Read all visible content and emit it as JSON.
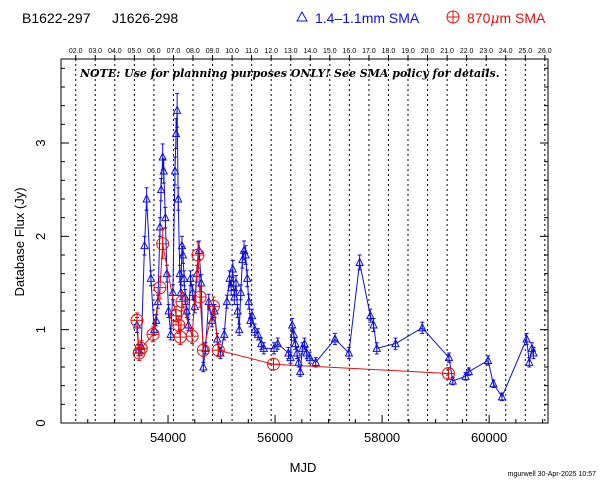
{
  "header": {
    "source_left": "B1622-297",
    "source_right": "J1626-298",
    "legend_blue_label": "1.4–1.1mm SMA",
    "legend_red_label_pre": "870",
    "legend_red_label_mu": "μ",
    "legend_red_label_post": "m SMA"
  },
  "note": "NOTE: Use for planning purposes ONLY!  See SMA policy for details.",
  "credit": "mgurwell 30-Apr-2025 10:57",
  "colors": {
    "blue": "#1010d8",
    "red": "#e01010",
    "axis": "#000000"
  },
  "chart_data": {
    "type": "scatter",
    "xlabel": "MJD",
    "ylabel": "Database Flux (Jy)",
    "xlim": [
      52000,
      61100
    ],
    "ylim": [
      0,
      3.9
    ],
    "x_ticks": [
      54000,
      56000,
      58000,
      60000
    ],
    "x_tick_labels": [
      "54000",
      "56000",
      "58000",
      "60000"
    ],
    "y_ticks": [
      0,
      1,
      2,
      3
    ],
    "y_tick_labels": [
      "0",
      "1",
      "2",
      "3"
    ],
    "year_marks": [
      {
        "label": "02.0",
        "mjd": 52275
      },
      {
        "label": "03.0",
        "mjd": 52640
      },
      {
        "label": "04.0",
        "mjd": 53005
      },
      {
        "label": "05.0",
        "mjd": 53371
      },
      {
        "label": "06.0",
        "mjd": 53736
      },
      {
        "label": "07.0",
        "mjd": 54101
      },
      {
        "label": "08.0",
        "mjd": 54466
      },
      {
        "label": "09.0",
        "mjd": 54832
      },
      {
        "label": "10.0",
        "mjd": 55197
      },
      {
        "label": "11.0",
        "mjd": 55562
      },
      {
        "label": "12.0",
        "mjd": 55927
      },
      {
        "label": "13.0",
        "mjd": 56293
      },
      {
        "label": "14.0",
        "mjd": 56658
      },
      {
        "label": "15.0",
        "mjd": 57023
      },
      {
        "label": "16.0",
        "mjd": 57388
      },
      {
        "label": "17.0",
        "mjd": 57754
      },
      {
        "label": "18.0",
        "mjd": 58119
      },
      {
        "label": "19.0",
        "mjd": 58484
      },
      {
        "label": "20.0",
        "mjd": 58849
      },
      {
        "label": "21.0",
        "mjd": 59215
      },
      {
        "label": "22.0",
        "mjd": 59580
      },
      {
        "label": "23.0",
        "mjd": 59945
      },
      {
        "label": "24.0",
        "mjd": 60310
      },
      {
        "label": "25.0",
        "mjd": 60676
      },
      {
        "label": "26.0",
        "mjd": 61041
      }
    ],
    "series": [
      {
        "name": "1.4–1.1mm SMA",
        "marker": "triangle",
        "color": "#1010d8",
        "points": [
          [
            53420,
            1.05,
            0.08
          ],
          [
            53450,
            0.78,
            0.06
          ],
          [
            53500,
            0.82,
            0.06
          ],
          [
            53560,
            1.9,
            0.1
          ],
          [
            53600,
            2.4,
            0.12
          ],
          [
            53680,
            1.55,
            0.08
          ],
          [
            53740,
            1.0,
            0.06
          ],
          [
            53780,
            1.1,
            0.06
          ],
          [
            53810,
            1.3,
            0.07
          ],
          [
            53850,
            2.1,
            0.1
          ],
          [
            53870,
            2.5,
            0.12
          ],
          [
            53900,
            2.85,
            0.14
          ],
          [
            53920,
            2.7,
            0.13
          ],
          [
            53950,
            2.2,
            0.11
          ],
          [
            53980,
            1.6,
            0.09
          ],
          [
            54010,
            1.2,
            0.07
          ],
          [
            54050,
            0.95,
            0.06
          ],
          [
            54090,
            1.4,
            0.08
          ],
          [
            54130,
            2.7,
            0.15
          ],
          [
            54150,
            3.1,
            0.16
          ],
          [
            54170,
            3.35,
            0.18
          ],
          [
            54190,
            2.4,
            0.12
          ],
          [
            54220,
            1.6,
            0.09
          ],
          [
            54240,
            1.4,
            0.08
          ],
          [
            54260,
            1.9,
            0.1
          ],
          [
            54280,
            1.8,
            0.09
          ],
          [
            54300,
            1.55,
            0.08
          ],
          [
            54320,
            1.35,
            0.08
          ],
          [
            54350,
            1.2,
            0.07
          ],
          [
            54380,
            1.05,
            0.06
          ],
          [
            54420,
            1.55,
            0.08
          ],
          [
            54460,
            1.4,
            0.08
          ],
          [
            54500,
            1.25,
            0.07
          ],
          [
            54540,
            1.6,
            0.09
          ],
          [
            54580,
            1.85,
            0.1
          ],
          [
            54620,
            1.5,
            0.09
          ],
          [
            54660,
            0.6,
            0.05
          ],
          [
            54700,
            0.8,
            0.06
          ],
          [
            54760,
            1.3,
            0.08
          ],
          [
            54820,
            1.1,
            0.07
          ],
          [
            54870,
            1.2,
            0.07
          ],
          [
            54920,
            0.9,
            0.06
          ],
          [
            54980,
            0.75,
            0.06
          ],
          [
            55050,
            0.95,
            0.06
          ],
          [
            55100,
            1.3,
            0.07
          ],
          [
            55150,
            1.55,
            0.08
          ],
          [
            55180,
            1.45,
            0.08
          ],
          [
            55210,
            1.65,
            0.09
          ],
          [
            55240,
            1.35,
            0.08
          ],
          [
            55270,
            1.5,
            0.08
          ],
          [
            55300,
            1.2,
            0.07
          ],
          [
            55330,
            1.0,
            0.06
          ],
          [
            55360,
            1.4,
            0.08
          ],
          [
            55390,
            1.75,
            0.09
          ],
          [
            55420,
            1.85,
            0.1
          ],
          [
            55450,
            1.8,
            0.1
          ],
          [
            55480,
            1.55,
            0.09
          ],
          [
            55510,
            1.3,
            0.08
          ],
          [
            55540,
            1.1,
            0.07
          ],
          [
            55570,
            1.15,
            0.07
          ],
          [
            55620,
            1.0,
            0.06
          ],
          [
            55680,
            0.95,
            0.06
          ],
          [
            55740,
            0.85,
            0.06
          ],
          [
            55790,
            0.8,
            0.06
          ],
          [
            55980,
            0.8,
            0.06
          ],
          [
            56050,
            0.85,
            0.06
          ],
          [
            56250,
            0.75,
            0.06
          ],
          [
            56290,
            0.7,
            0.06
          ],
          [
            56320,
            1.05,
            0.07
          ],
          [
            56350,
            0.95,
            0.07
          ],
          [
            56380,
            0.85,
            0.06
          ],
          [
            56410,
            0.75,
            0.06
          ],
          [
            56440,
            0.65,
            0.05
          ],
          [
            56470,
            0.55,
            0.05
          ],
          [
            56510,
            0.8,
            0.06
          ],
          [
            56550,
            0.85,
            0.06
          ],
          [
            56590,
            0.75,
            0.06
          ],
          [
            56650,
            0.7,
            0.06
          ],
          [
            56760,
            0.65,
            0.05
          ],
          [
            57120,
            0.9,
            0.06
          ],
          [
            57380,
            0.75,
            0.06
          ],
          [
            57580,
            1.72,
            0.08
          ],
          [
            57780,
            1.15,
            0.07
          ],
          [
            57840,
            1.05,
            0.07
          ],
          [
            57900,
            0.8,
            0.06
          ],
          [
            58250,
            0.85,
            0.06
          ],
          [
            58750,
            1.02,
            0.06
          ],
          [
            59250,
            0.7,
            0.05
          ],
          [
            59320,
            0.45,
            0.04
          ],
          [
            59560,
            0.5,
            0.04
          ],
          [
            59620,
            0.55,
            0.04
          ],
          [
            59980,
            0.67,
            0.05
          ],
          [
            60080,
            0.42,
            0.04
          ],
          [
            60240,
            0.28,
            0.04
          ],
          [
            60700,
            0.9,
            0.06
          ],
          [
            60750,
            0.65,
            0.05
          ],
          [
            60800,
            0.8,
            0.06
          ],
          [
            60830,
            0.75,
            0.06
          ]
        ]
      },
      {
        "name": "870μm SMA",
        "marker": "circle-plus",
        "color": "#e01010",
        "points": [
          [
            53420,
            1.1,
            0.08
          ],
          [
            53460,
            0.75,
            0.08
          ],
          [
            53500,
            0.8,
            0.08
          ],
          [
            53720,
            0.95,
            0.08
          ],
          [
            53850,
            1.45,
            0.12
          ],
          [
            53900,
            1.92,
            0.16
          ],
          [
            54150,
            1.15,
            0.1
          ],
          [
            54200,
            1.05,
            0.09
          ],
          [
            54230,
            0.92,
            0.08
          ],
          [
            54260,
            1.3,
            0.1
          ],
          [
            54450,
            0.93,
            0.08
          ],
          [
            54560,
            1.8,
            0.14
          ],
          [
            54600,
            1.35,
            0.11
          ],
          [
            54660,
            0.78,
            0.07
          ],
          [
            54850,
            1.25,
            0.1
          ],
          [
            54940,
            0.78,
            0.07
          ],
          [
            55970,
            0.63,
            0.06
          ],
          [
            59240,
            0.53,
            0.05
          ]
        ]
      }
    ]
  }
}
